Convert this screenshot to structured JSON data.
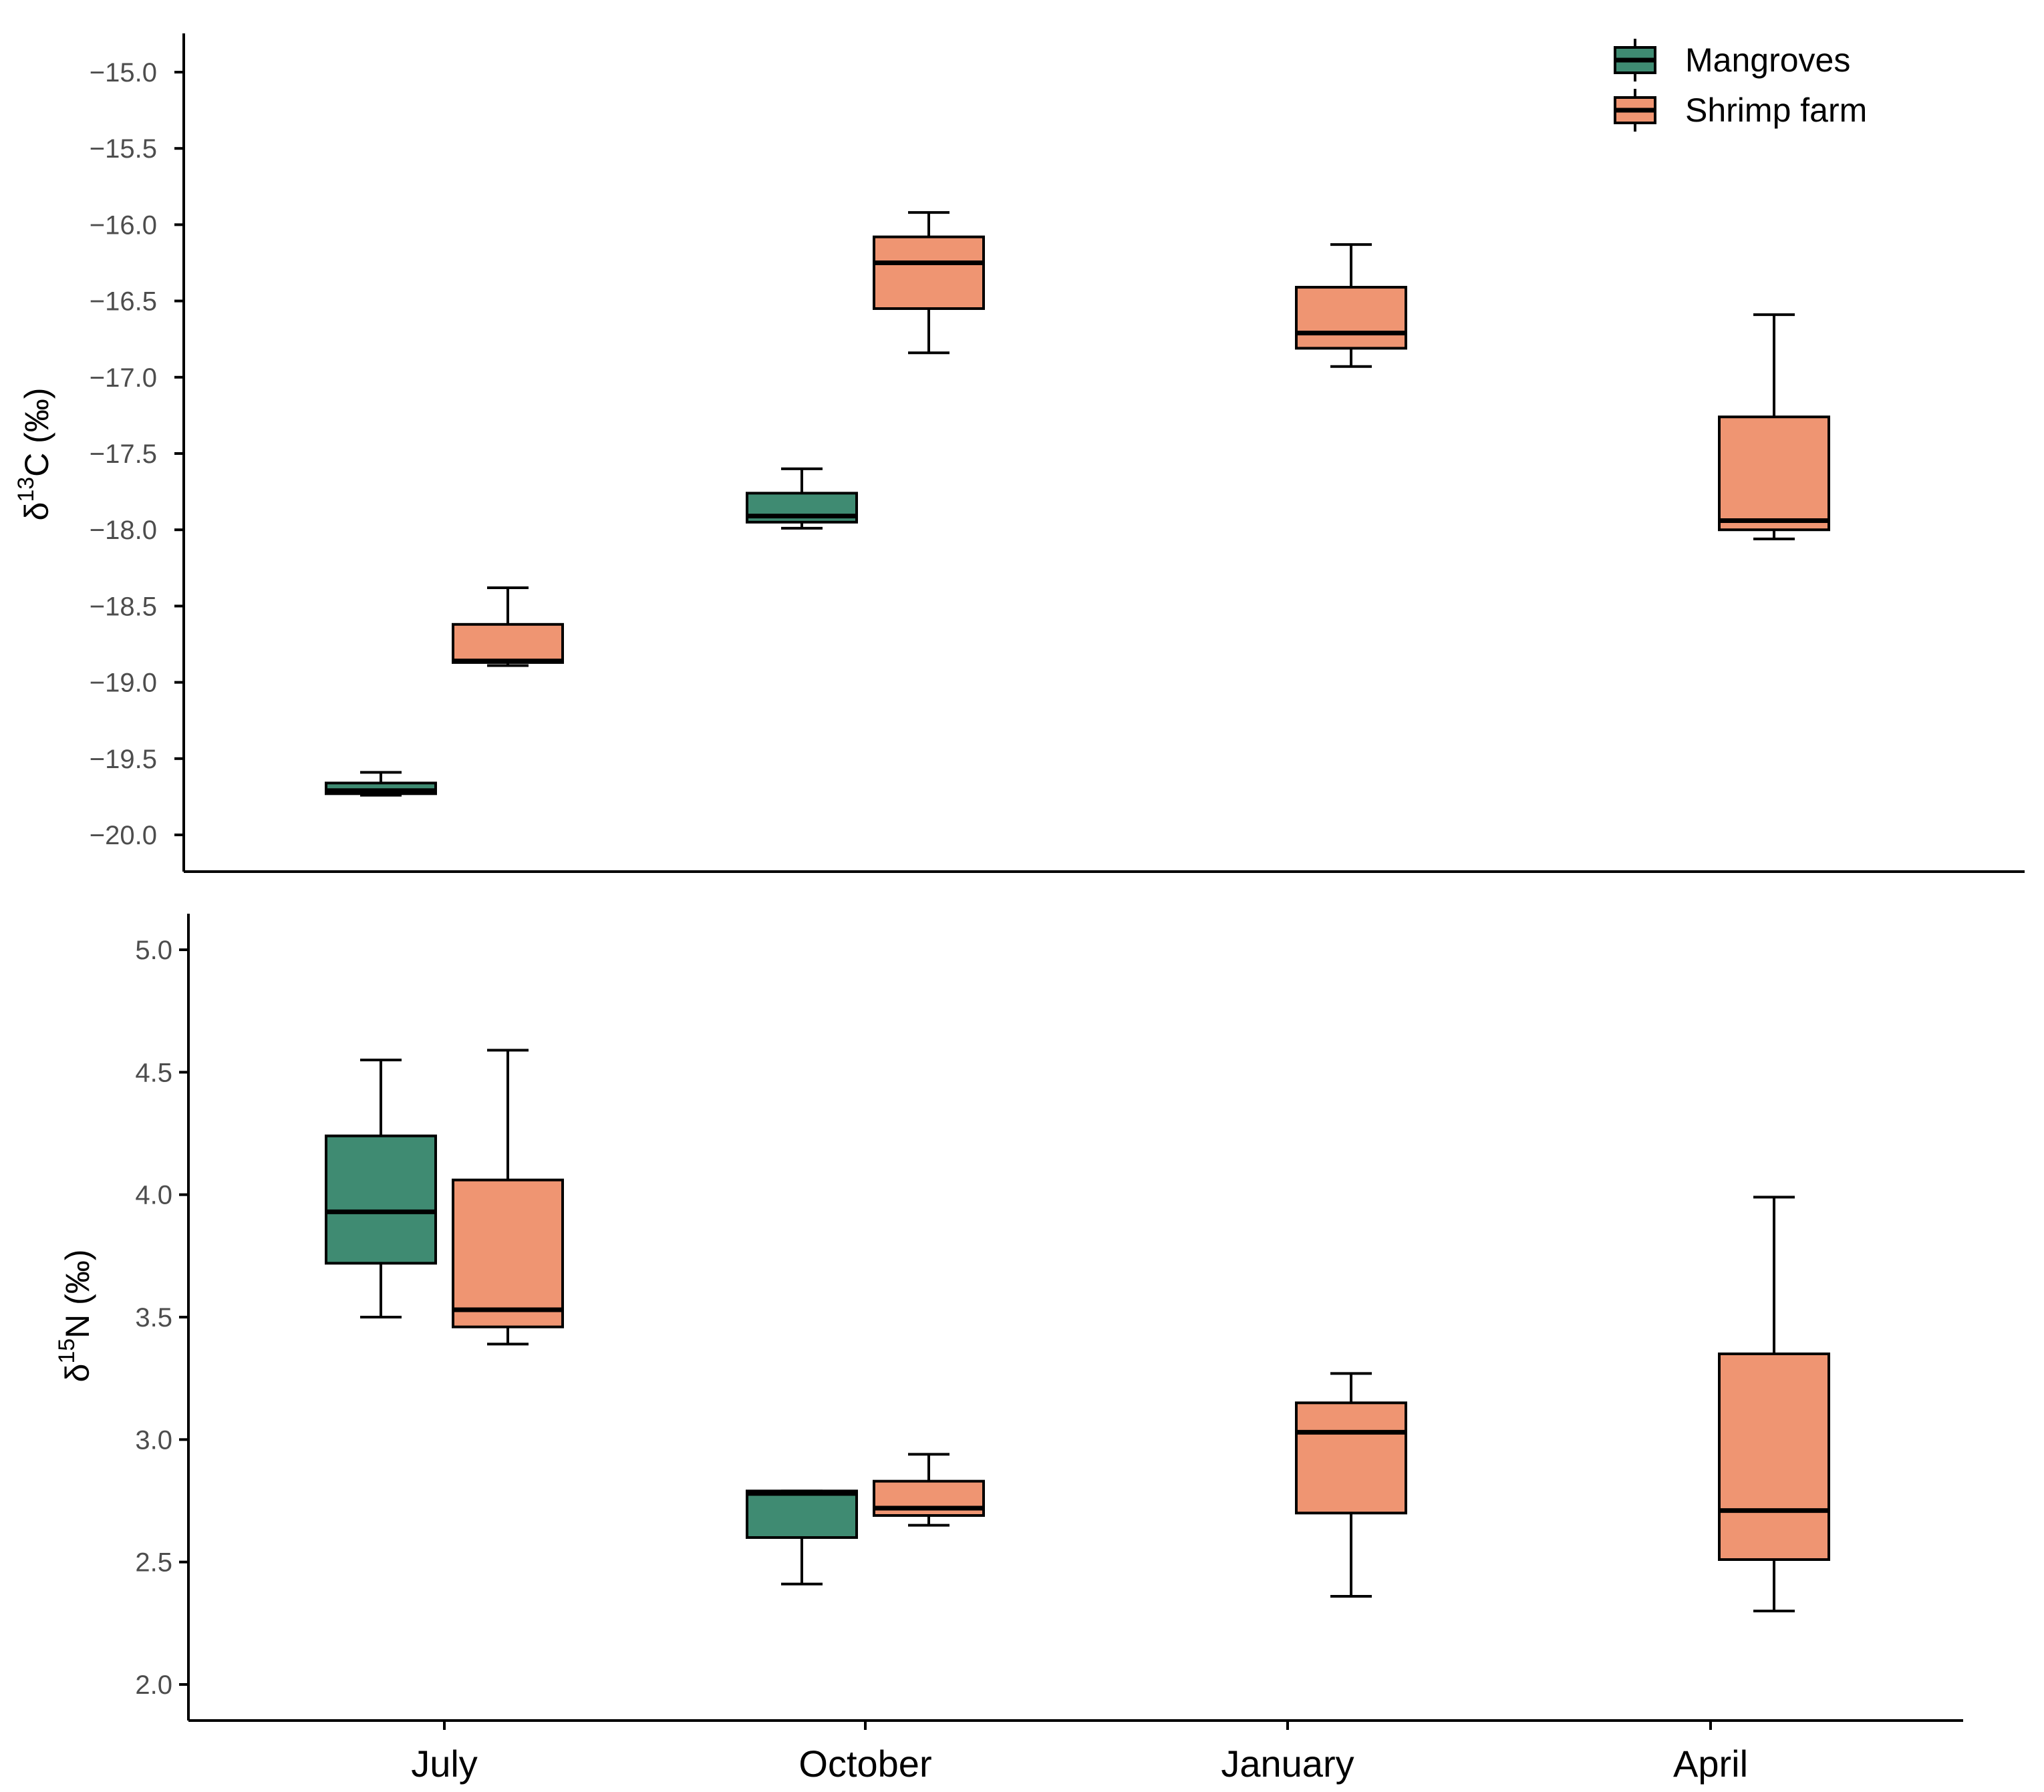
{
  "chart_data": [
    {
      "type": "boxplot",
      "ylabel": {
        "prefix": "δ",
        "sup": "13",
        "suffix": "C (‰)"
      },
      "ylim": [
        -20.25,
        -14.75
      ],
      "yticks": [
        -15.0,
        -15.5,
        -16.0,
        -16.5,
        -17.0,
        -17.5,
        -18.0,
        -18.5,
        -19.0,
        -19.5,
        -20.0
      ],
      "ytick_labels": [
        "−15.0",
        "−15.5",
        "−16.0",
        "−16.5",
        "−17.0",
        "−17.5",
        "−18.0",
        "−18.5",
        "−19.0",
        "−19.5",
        "−20.0"
      ],
      "categories": [
        "July",
        "October",
        "January",
        "April"
      ],
      "grid": false,
      "legend": {
        "position": "top-right"
      },
      "series": [
        {
          "name": "Mangroves",
          "color": "#3f8b72",
          "boxes": [
            {
              "category": "July",
              "whisker_low": -19.74,
              "q1": -19.73,
              "median": -19.71,
              "q3": -19.66,
              "whisker_high": -19.59
            },
            {
              "category": "October",
              "whisker_low": -17.99,
              "q1": -17.95,
              "median": -17.91,
              "q3": -17.76,
              "whisker_high": -17.6
            },
            null,
            null
          ]
        },
        {
          "name": "Shrimp farm",
          "color": "#ef9572",
          "boxes": [
            {
              "category": "July",
              "whisker_low": -18.89,
              "q1": -18.87,
              "median": -18.86,
              "q3": -18.62,
              "whisker_high": -18.38
            },
            {
              "category": "October",
              "whisker_low": -16.84,
              "q1": -16.55,
              "median": -16.25,
              "q3": -16.08,
              "whisker_high": -15.92
            },
            {
              "category": "January",
              "whisker_low": -16.93,
              "q1": -16.81,
              "median": -16.71,
              "q3": -16.41,
              "whisker_high": -16.13
            },
            {
              "category": "April",
              "whisker_low": -18.06,
              "q1": -18.0,
              "median": -17.94,
              "q3": -17.26,
              "whisker_high": -16.59
            }
          ]
        }
      ]
    },
    {
      "type": "boxplot",
      "ylabel": {
        "prefix": "δ",
        "sup": "15",
        "suffix": "N (‰)"
      },
      "ylim": [
        1.92,
        5.15
      ],
      "yticks": [
        5.0,
        4.5,
        4.0,
        3.5,
        3.0,
        2.5,
        2.0
      ],
      "ytick_labels": [
        "5.0",
        "4.5",
        "4.0",
        "3.5",
        "3.0",
        "2.5",
        "2.0"
      ],
      "categories": [
        "July",
        "October",
        "January",
        "April"
      ],
      "grid": false,
      "series": [
        {
          "name": "Mangroves",
          "color": "#3f8b72",
          "boxes": [
            {
              "category": "July",
              "whisker_low": 3.5,
              "q1": 3.72,
              "median": 3.93,
              "q3": 4.24,
              "whisker_high": 4.55
            },
            {
              "category": "October",
              "whisker_low": 2.41,
              "q1": 2.6,
              "median": 2.78,
              "q3": 2.79,
              "whisker_high": 2.79
            },
            null,
            null
          ]
        },
        {
          "name": "Shrimp farm",
          "color": "#ef9572",
          "boxes": [
            {
              "category": "July",
              "whisker_low": 3.39,
              "q1": 3.46,
              "median": 3.53,
              "q3": 4.06,
              "whisker_high": 4.59
            },
            {
              "category": "October",
              "whisker_low": 2.65,
              "q1": 2.69,
              "median": 2.72,
              "q3": 2.83,
              "whisker_high": 2.94
            },
            {
              "category": "January",
              "whisker_low": 2.36,
              "q1": 2.7,
              "median": 3.03,
              "q3": 3.15,
              "whisker_high": 3.27
            },
            {
              "category": "April",
              "whisker_low": 2.3,
              "q1": 2.51,
              "median": 2.71,
              "q3": 3.35,
              "whisker_high": 3.99
            }
          ]
        }
      ]
    }
  ]
}
